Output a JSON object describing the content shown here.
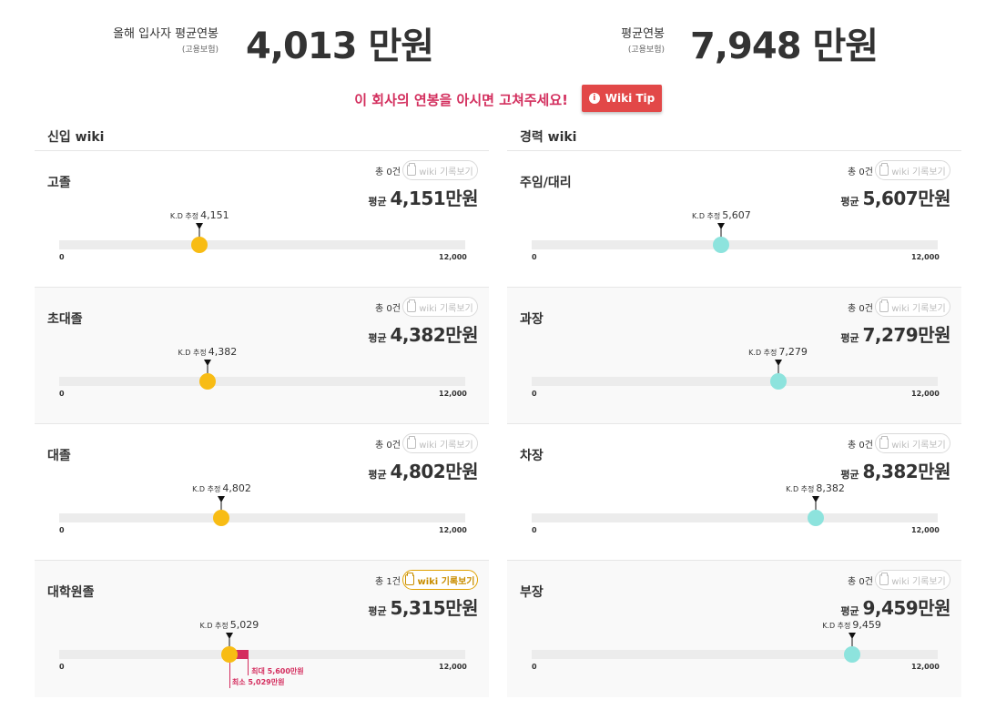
{
  "summary": {
    "entry_label": "올해 입사자 평균연봉",
    "entry_sub": "(고용보험)",
    "entry_value": "4,013 만원",
    "avg_label": "평균연봉",
    "avg_sub": "(고용보험)",
    "avg_value": "7,948 만원"
  },
  "notice": {
    "text": "이 회사의 연봉을 아시면 고쳐주세요!",
    "wiki_tip_label": "Wiki Tip"
  },
  "gauge_scale": {
    "min": 0,
    "max": 12000,
    "min_label": "0",
    "max_label": "12,000"
  },
  "common": {
    "estimate_tag": "K.D 추정",
    "avg_prefix": "평균",
    "log_button_label": "wiki 기록보기"
  },
  "entry_wiki": {
    "header": "신입 wiki",
    "items": [
      {
        "title": "고졸",
        "count": "총 0건",
        "avg": "4,151만원",
        "estimate": "4,151",
        "estimate_value": 4151,
        "active": false
      },
      {
        "title": "초대졸",
        "count": "총 0건",
        "avg": "4,382만원",
        "estimate": "4,382",
        "estimate_value": 4382,
        "active": false
      },
      {
        "title": "대졸",
        "count": "총 0건",
        "avg": "4,802만원",
        "estimate": "4,802",
        "estimate_value": 4802,
        "active": false
      },
      {
        "title": "대학원졸",
        "count": "총 1건",
        "avg": "5,315만원",
        "estimate": "5,029",
        "estimate_value": 5029,
        "active": true,
        "range": {
          "min": 5029,
          "max": 5600,
          "min_label": "최소 5,029만원",
          "max_label": "최대 5,600만원"
        }
      }
    ]
  },
  "career_wiki": {
    "header": "경력 wiki",
    "items": [
      {
        "title": "주임/대리",
        "count": "총 0건",
        "avg": "5,607만원",
        "estimate": "5,607",
        "estimate_value": 5607,
        "active": false
      },
      {
        "title": "과장",
        "count": "총 0건",
        "avg": "7,279만원",
        "estimate": "7,279",
        "estimate_value": 7279,
        "active": false
      },
      {
        "title": "차장",
        "count": "총 0건",
        "avg": "8,382만원",
        "estimate": "8,382",
        "estimate_value": 8382,
        "active": false
      },
      {
        "title": "부장",
        "count": "총 0건",
        "avg": "9,459만원",
        "estimate": "9,459",
        "estimate_value": 9459,
        "active": false
      }
    ]
  },
  "colors": {
    "entry_dot": "#f8bc14",
    "career_dot": "#8de3dd",
    "range": "#d42d5e",
    "notice": "#d32f5e",
    "wiki_tip_bg": "#e24848"
  }
}
